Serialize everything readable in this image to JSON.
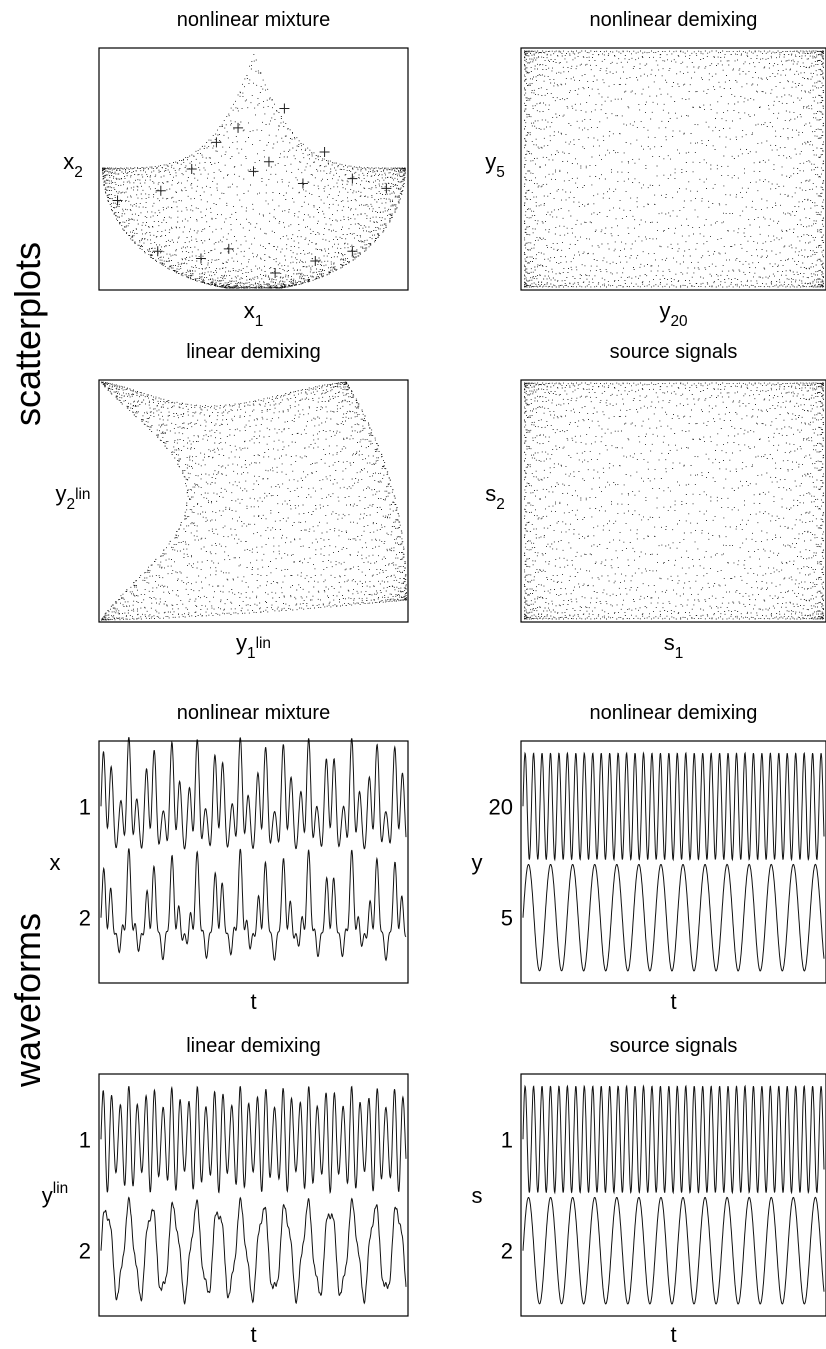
{
  "sections": {
    "scatter_label": "scatterplots",
    "wave_label": "waveforms"
  },
  "chart_data": [
    {
      "id": "scatter-nonlinear-mixture",
      "type": "scatter",
      "title": "nonlinear mixture",
      "xlabel": {
        "base": "x",
        "sub": "1",
        "sup": ""
      },
      "ylabel": {
        "base": "x",
        "sub": "2",
        "sup": ""
      },
      "shape": "cusp",
      "markers": "plus",
      "grid": false
    },
    {
      "id": "scatter-nonlinear-demixing",
      "type": "scatter",
      "title": "nonlinear demixing",
      "xlabel": {
        "base": "y",
        "sub": "20",
        "sup": ""
      },
      "ylabel": {
        "base": "y",
        "sub": "5",
        "sup": ""
      },
      "shape": "square",
      "grid": false
    },
    {
      "id": "scatter-linear-demixing",
      "type": "scatter",
      "title": "linear demixing",
      "xlabel": {
        "base": "y",
        "sub": "1",
        "sup": "lin"
      },
      "ylabel": {
        "base": "y",
        "sub": "2",
        "sup": "lin"
      },
      "shape": "warped",
      "grid": false
    },
    {
      "id": "scatter-source-signals",
      "type": "scatter",
      "title": "source signals",
      "xlabel": {
        "base": "s",
        "sub": "1",
        "sup": ""
      },
      "ylabel": {
        "base": "s",
        "sub": "2",
        "sup": ""
      },
      "shape": "square",
      "grid": false
    },
    {
      "id": "wave-nonlinear-mixture",
      "type": "line",
      "title": "nonlinear mixture",
      "xlabel": "t",
      "ylabel": {
        "base": "x",
        "sup": ""
      },
      "channels": [
        "1",
        "2"
      ],
      "kind": "mixture",
      "grid": false
    },
    {
      "id": "wave-nonlinear-demixing",
      "type": "line",
      "title": "nonlinear demixing",
      "xlabel": "t",
      "ylabel": {
        "base": "y",
        "sup": ""
      },
      "channels": [
        "20",
        "5"
      ],
      "kind": "source",
      "grid": false
    },
    {
      "id": "wave-linear-demixing",
      "type": "line",
      "title": "linear demixing",
      "xlabel": "t",
      "ylabel": {
        "base": "y",
        "sup": "lin"
      },
      "channels": [
        "1",
        "2"
      ],
      "kind": "linear",
      "grid": false
    },
    {
      "id": "wave-source-signals",
      "type": "line",
      "title": "source signals",
      "xlabel": "t",
      "ylabel": {
        "base": "s",
        "sup": ""
      },
      "channels": [
        "1",
        "2"
      ],
      "kind": "source",
      "grid": false
    }
  ]
}
